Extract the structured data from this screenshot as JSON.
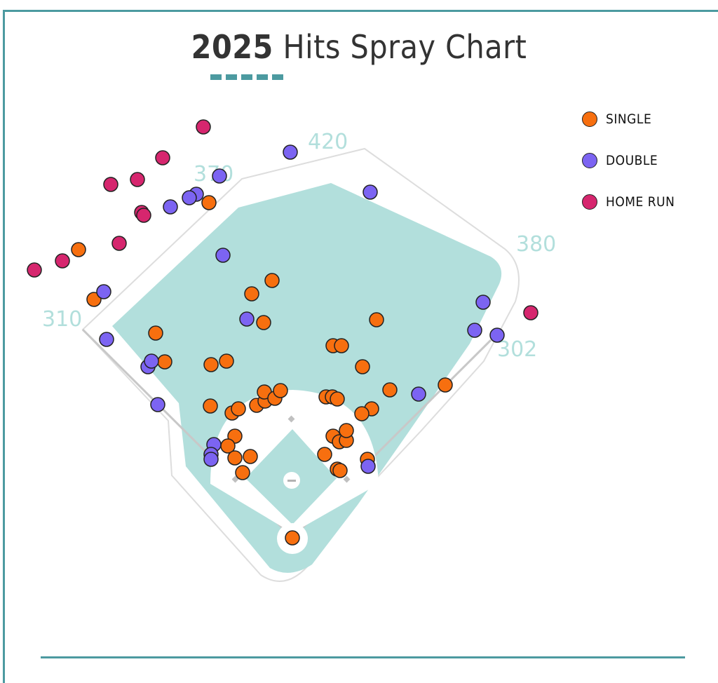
{
  "title": {
    "year": "2025",
    "text": "Hits Spray Chart"
  },
  "colors": {
    "accent": "#4c9aa0",
    "field": "#b2dfdc",
    "single": "#f76f0f",
    "double": "#7c64f2",
    "home_run": "#d6266e"
  },
  "legend": [
    {
      "label": "SINGLE",
      "type": "single"
    },
    {
      "label": "DOUBLE",
      "type": "double"
    },
    {
      "label": "HOME RUN",
      "type": "home_run"
    }
  ],
  "chart_data": {
    "type": "scatter",
    "subtype": "baseball-spray-chart",
    "fence_distances": {
      "left": "310",
      "left_center": "370",
      "center": "420",
      "right_center": "380",
      "right": "302"
    },
    "series": [
      {
        "name": "SINGLE",
        "points": [
          [
            298,
            289
          ],
          [
            112,
            356
          ],
          [
            134,
            427
          ],
          [
            388,
            400
          ],
          [
            359,
            419
          ],
          [
            376,
            460
          ],
          [
            537,
            456
          ],
          [
            222,
            475
          ],
          [
            235,
            516
          ],
          [
            301,
            520
          ],
          [
            323,
            515
          ],
          [
            475,
            493
          ],
          [
            487,
            493
          ],
          [
            517,
            523
          ],
          [
            556,
            556
          ],
          [
            635,
            549
          ],
          [
            530,
            583
          ],
          [
            516,
            590
          ],
          [
            300,
            579
          ],
          [
            331,
            589
          ],
          [
            340,
            583
          ],
          [
            366,
            578
          ],
          [
            378,
            572
          ],
          [
            377,
            559
          ],
          [
            392,
            568
          ],
          [
            400,
            557
          ],
          [
            465,
            566
          ],
          [
            474,
            566
          ],
          [
            481,
            569
          ],
          [
            335,
            622
          ],
          [
            325,
            636
          ],
          [
            335,
            653
          ],
          [
            357,
            651
          ],
          [
            346,
            674
          ],
          [
            463,
            648
          ],
          [
            475,
            622
          ],
          [
            484,
            630
          ],
          [
            494,
            628
          ],
          [
            494,
            614
          ],
          [
            481,
            669
          ],
          [
            485,
            671
          ],
          [
            524,
            655
          ],
          [
            417,
            767
          ]
        ]
      },
      {
        "name": "DOUBLE",
        "points": [
          [
            414,
            217
          ],
          [
            313,
            251
          ],
          [
            528,
            274
          ],
          [
            280,
            277
          ],
          [
            270,
            282
          ],
          [
            243,
            295
          ],
          [
            318,
            364
          ],
          [
            148,
            416
          ],
          [
            352,
            455
          ],
          [
            152,
            484
          ],
          [
            211,
            523
          ],
          [
            216,
            515
          ],
          [
            225,
            577
          ],
          [
            305,
            634
          ],
          [
            301,
            648
          ],
          [
            301,
            655
          ],
          [
            525,
            665
          ],
          [
            597,
            562
          ],
          [
            677,
            471
          ],
          [
            689,
            431
          ],
          [
            709,
            478
          ]
        ]
      },
      {
        "name": "HOME RUN",
        "points": [
          [
            290,
            181
          ],
          [
            232,
            225
          ],
          [
            196,
            256
          ],
          [
            158,
            263
          ],
          [
            202,
            303
          ],
          [
            205,
            307
          ],
          [
            170,
            347
          ],
          [
            89,
            372
          ],
          [
            49,
            385
          ],
          [
            757,
            446
          ]
        ]
      }
    ]
  }
}
